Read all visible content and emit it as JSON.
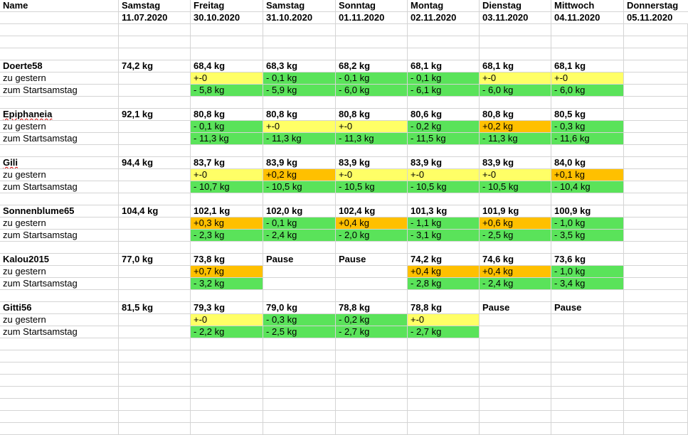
{
  "colors": {
    "green": "#5ae35a",
    "yellow": "#ffff66",
    "orange": "#ffc000",
    "white": "#ffffff"
  },
  "header": {
    "row1": [
      "Name",
      "Samstag",
      "Freitag",
      "Samstag",
      "Sonntag",
      "Montag",
      "Dienstag",
      "Mittwoch",
      "Donnerstag"
    ],
    "row2": [
      "",
      "11.07.2020",
      "30.10.2020",
      "31.10.2020",
      "01.11.2020",
      "02.11.2020",
      "03.11.2020",
      "04.11.2020",
      "05.11.2020"
    ]
  },
  "participants": [
    {
      "name": "Doerte58",
      "spellcheck": false,
      "weights": [
        "74,2 kg",
        "68,4 kg",
        "68,3 kg",
        "68,2 kg",
        "68,1 kg",
        "68,1 kg",
        "68,1 kg",
        ""
      ],
      "zu_gestern_label": "zu gestern",
      "zu_gestern": [
        [
          "",
          ""
        ],
        [
          "+-0",
          "yellow"
        ],
        [
          "- 0,1 kg",
          "green"
        ],
        [
          "- 0,1 kg",
          "green"
        ],
        [
          "- 0,1 kg",
          "green"
        ],
        [
          "+-0",
          "yellow"
        ],
        [
          "+-0",
          "yellow"
        ],
        [
          "",
          ""
        ]
      ],
      "start_label": "zum Startsamstag",
      "start": [
        [
          "",
          ""
        ],
        [
          "- 5,8 kg",
          "green"
        ],
        [
          "- 5,9 kg",
          "green"
        ],
        [
          "- 6,0 kg",
          "green"
        ],
        [
          "- 6,1 kg",
          "green"
        ],
        [
          "- 6,0 kg",
          "green"
        ],
        [
          "- 6,0 kg",
          "green"
        ],
        [
          "",
          ""
        ]
      ]
    },
    {
      "name": "Epiphaneia",
      "spellcheck": true,
      "weights": [
        "92,1 kg",
        "80,8 kg",
        "80,8 kg",
        "80,8 kg",
        "80,6 kg",
        "80,8 kg",
        "80,5 kg",
        ""
      ],
      "zu_gestern_label": "zu gestern",
      "zu_gestern": [
        [
          "",
          ""
        ],
        [
          "-  0,1 kg",
          "green"
        ],
        [
          "+-0",
          "yellow"
        ],
        [
          "+-0",
          "yellow"
        ],
        [
          "-  0,2 kg",
          "green"
        ],
        [
          "+0,2 kg",
          "orange"
        ],
        [
          "- 0,3 kg",
          "green"
        ],
        [
          "",
          ""
        ]
      ],
      "start_label": "zum Startsamstag",
      "start": [
        [
          "",
          ""
        ],
        [
          "- 11,3 kg",
          "green"
        ],
        [
          "- 11,3 kg",
          "green"
        ],
        [
          "- 11,3 kg",
          "green"
        ],
        [
          "- 11,5 kg",
          "green"
        ],
        [
          "- 11,3 kg",
          "green"
        ],
        [
          "- 11,6 kg",
          "green"
        ],
        [
          "",
          ""
        ]
      ]
    },
    {
      "name": "Gili",
      "spellcheck": true,
      "weights": [
        "94,4 kg",
        "83,7 kg",
        "83,9 kg",
        "83,9 kg",
        "83,9 kg",
        "83,9 kg",
        "84,0 kg",
        ""
      ],
      "zu_gestern_label": "zu gestern",
      "zu_gestern": [
        [
          "",
          ""
        ],
        [
          "+-0",
          "yellow"
        ],
        [
          "+0,2 kg",
          "orange"
        ],
        [
          "+-0",
          "yellow"
        ],
        [
          "+-0",
          "yellow"
        ],
        [
          "+-0",
          "yellow"
        ],
        [
          "+0,1 kg",
          "orange"
        ],
        [
          "",
          ""
        ]
      ],
      "start_label": "zum Startsamstag",
      "start": [
        [
          "",
          ""
        ],
        [
          "- 10,7 kg",
          "green"
        ],
        [
          "- 10,5 kg",
          "green"
        ],
        [
          "- 10,5 kg",
          "green"
        ],
        [
          "- 10,5 kg",
          "green"
        ],
        [
          "- 10,5 kg",
          "green"
        ],
        [
          "- 10,4 kg",
          "green"
        ],
        [
          "",
          ""
        ]
      ]
    },
    {
      "name": "Sonnenblume65",
      "spellcheck": false,
      "weights": [
        "104,4 kg",
        "102,1 kg",
        "102,0 kg",
        "102,4 kg",
        "101,3 kg",
        "101,9 kg",
        "100,9 kg",
        ""
      ],
      "zu_gestern_label": "zu gestern",
      "zu_gestern": [
        [
          "",
          ""
        ],
        [
          "+0,3 kg",
          "orange"
        ],
        [
          "- 0,1 kg",
          "green"
        ],
        [
          "+0,4 kg",
          "orange"
        ],
        [
          "- 1,1 kg",
          "green"
        ],
        [
          "+0,6 kg",
          "orange"
        ],
        [
          "- 1,0 kg",
          "green"
        ],
        [
          "",
          ""
        ]
      ],
      "start_label": "zum Startsamstag",
      "start": [
        [
          "",
          ""
        ],
        [
          "- 2,3 kg",
          "green"
        ],
        [
          "- 2,4 kg",
          "green"
        ],
        [
          "- 2,0 kg",
          "green"
        ],
        [
          "- 3,1 kg",
          "green"
        ],
        [
          "- 2,5 kg",
          "green"
        ],
        [
          "- 3,5 kg",
          "green"
        ],
        [
          "",
          ""
        ]
      ]
    },
    {
      "name": "Kalou2015",
      "spellcheck": false,
      "weights": [
        "77,0 kg",
        "73,8 kg",
        "Pause",
        "Pause",
        "74,2 kg",
        "74,6 kg",
        "73,6 kg",
        ""
      ],
      "zu_gestern_label": "zu gestern",
      "zu_gestern": [
        [
          "",
          ""
        ],
        [
          "+0,7 kg",
          "orange"
        ],
        [
          "",
          ""
        ],
        [
          "",
          ""
        ],
        [
          "+0,4 kg",
          "orange"
        ],
        [
          "+0,4 kg",
          "orange"
        ],
        [
          "- 1,0 kg",
          "green"
        ],
        [
          "",
          ""
        ]
      ],
      "start_label": "zum Startsamstag",
      "start": [
        [
          "",
          ""
        ],
        [
          "- 3,2 kg",
          "green"
        ],
        [
          "",
          ""
        ],
        [
          "",
          ""
        ],
        [
          "- 2,8 kg",
          "green"
        ],
        [
          "- 2,4 kg",
          "green"
        ],
        [
          "- 3,4 kg",
          "green"
        ],
        [
          "",
          ""
        ]
      ]
    },
    {
      "name": "Gitti56",
      "spellcheck": false,
      "weights": [
        "81,5 kg",
        "79,3 kg",
        "79,0 kg",
        "78,8 kg",
        "78,8 kg",
        "Pause",
        "Pause",
        ""
      ],
      "zu_gestern_label": "zu gestern",
      "zu_gestern": [
        [
          "",
          ""
        ],
        [
          "+-0",
          "yellow"
        ],
        [
          "- 0,3 kg",
          "green"
        ],
        [
          "- 0,2 kg",
          "green"
        ],
        [
          "+-0",
          "yellow"
        ],
        [
          "",
          ""
        ],
        [
          "",
          ""
        ],
        [
          "",
          ""
        ]
      ],
      "start_label": "zum Startsamstag",
      "start": [
        [
          "",
          ""
        ],
        [
          "- 2,2 kg",
          "green"
        ],
        [
          "- 2,5 kg",
          "green"
        ],
        [
          "- 2,7 kg",
          "green"
        ],
        [
          "- 2,7 kg",
          "green"
        ],
        [
          "",
          ""
        ],
        [
          "",
          ""
        ],
        [
          "",
          ""
        ]
      ]
    }
  ]
}
